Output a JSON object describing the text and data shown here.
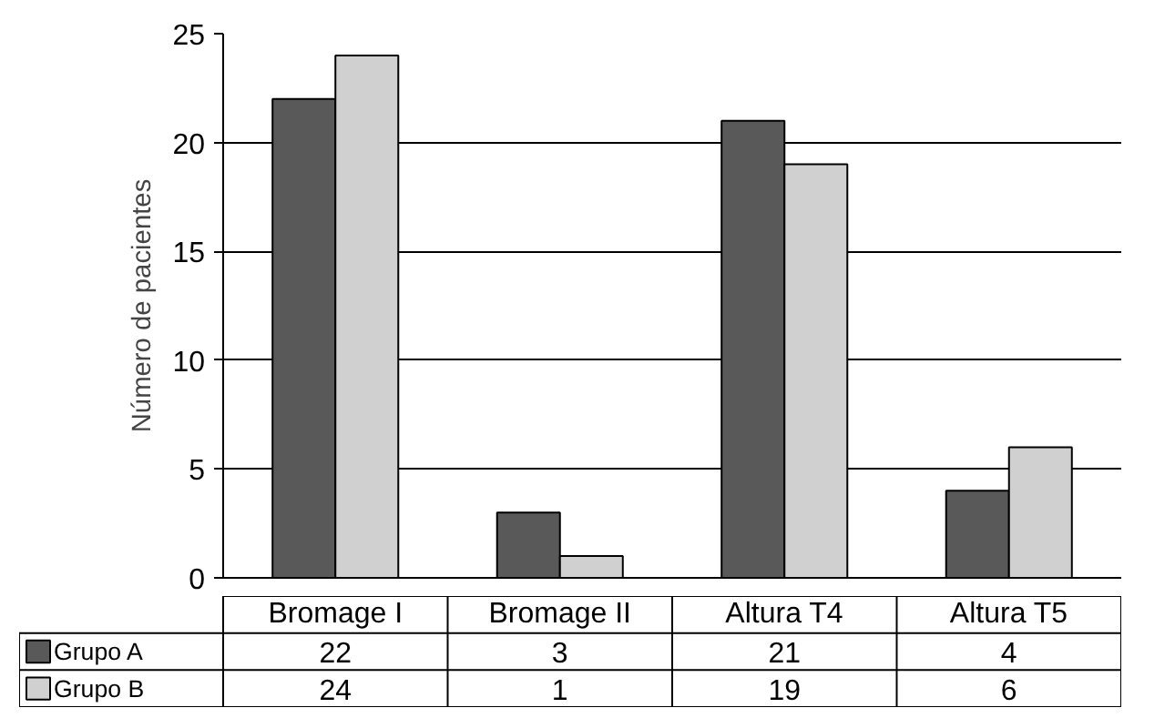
{
  "chart_data": {
    "type": "bar",
    "ylabel": "Número de pacientes",
    "categories": [
      "Bromage I",
      "Bromage II",
      "Altura T4",
      "Altura T5"
    ],
    "series": [
      {
        "name": "Grupo A",
        "color": "#595959",
        "values": [
          22,
          3,
          21,
          4
        ]
      },
      {
        "name": "Grupo B",
        "color": "#d0d0d0",
        "values": [
          24,
          1,
          19,
          6
        ]
      }
    ],
    "ylim": [
      0,
      25
    ],
    "yticks": [
      0,
      5,
      10,
      15,
      20,
      25
    ],
    "grid": "y",
    "legend": "bottom",
    "data_labels": true
  }
}
